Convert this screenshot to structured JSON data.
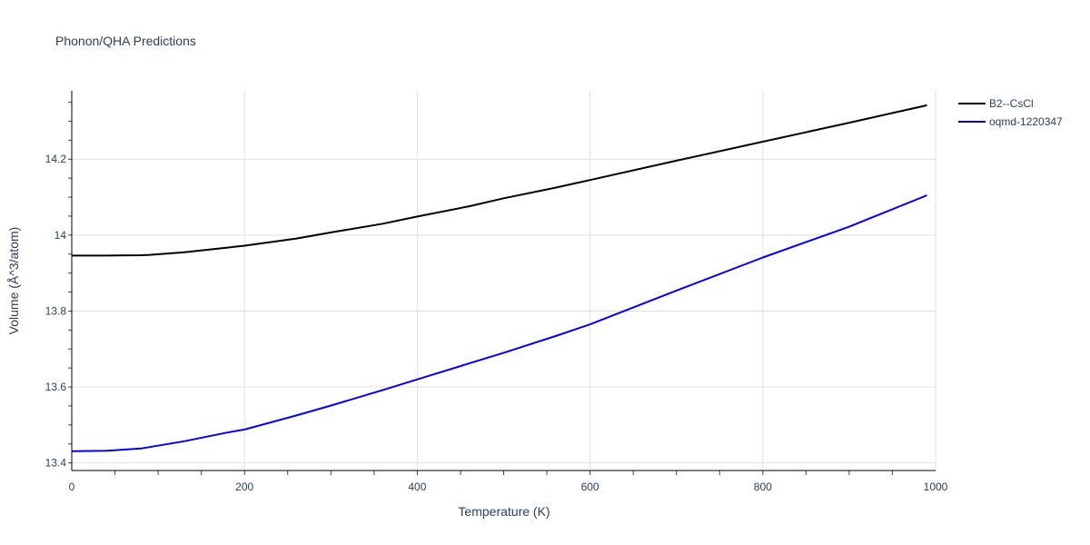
{
  "chart_data": {
    "type": "line",
    "title": "Phonon/QHA Predictions",
    "xlabel": "Temperature (K)",
    "ylabel": "Volume (Å^3/atom)",
    "xlim": [
      0,
      1000
    ],
    "ylim": [
      13.38,
      14.38
    ],
    "xticks": [
      0,
      200,
      400,
      600,
      800,
      1000
    ],
    "xtick_labels": [
      "0",
      "200",
      "400",
      "600",
      "800",
      "1000"
    ],
    "yticks": [
      13.4,
      13.6,
      13.8,
      14.0,
      14.2
    ],
    "ytick_labels": [
      "13.4",
      "13.6",
      "13.8",
      "14",
      "14.2"
    ],
    "grid": true,
    "legend_position": "top-right",
    "series": [
      {
        "name": "B2--CsCl",
        "color": "#000000",
        "x": [
          0,
          40,
          80,
          90,
          130,
          180,
          200,
          260,
          300,
          360,
          400,
          460,
          500,
          560,
          600,
          700,
          800,
          900,
          990
        ],
        "y": [
          13.946,
          13.946,
          13.947,
          13.948,
          13.955,
          13.967,
          13.972,
          13.991,
          14.007,
          14.03,
          14.049,
          14.076,
          14.097,
          14.125,
          14.145,
          14.196,
          14.246,
          14.296,
          14.342
        ]
      },
      {
        "name": "oqmd-1220347",
        "color": "#0000ff",
        "x": [
          0,
          40,
          80,
          130,
          180,
          200,
          260,
          300,
          360,
          400,
          460,
          500,
          560,
          600,
          700,
          800,
          900,
          990
        ],
        "y": [
          13.431,
          13.432,
          13.438,
          13.457,
          13.48,
          13.488,
          13.525,
          13.551,
          13.592,
          13.62,
          13.662,
          13.69,
          13.734,
          13.765,
          13.854,
          13.941,
          14.022,
          14.105
        ]
      }
    ]
  }
}
